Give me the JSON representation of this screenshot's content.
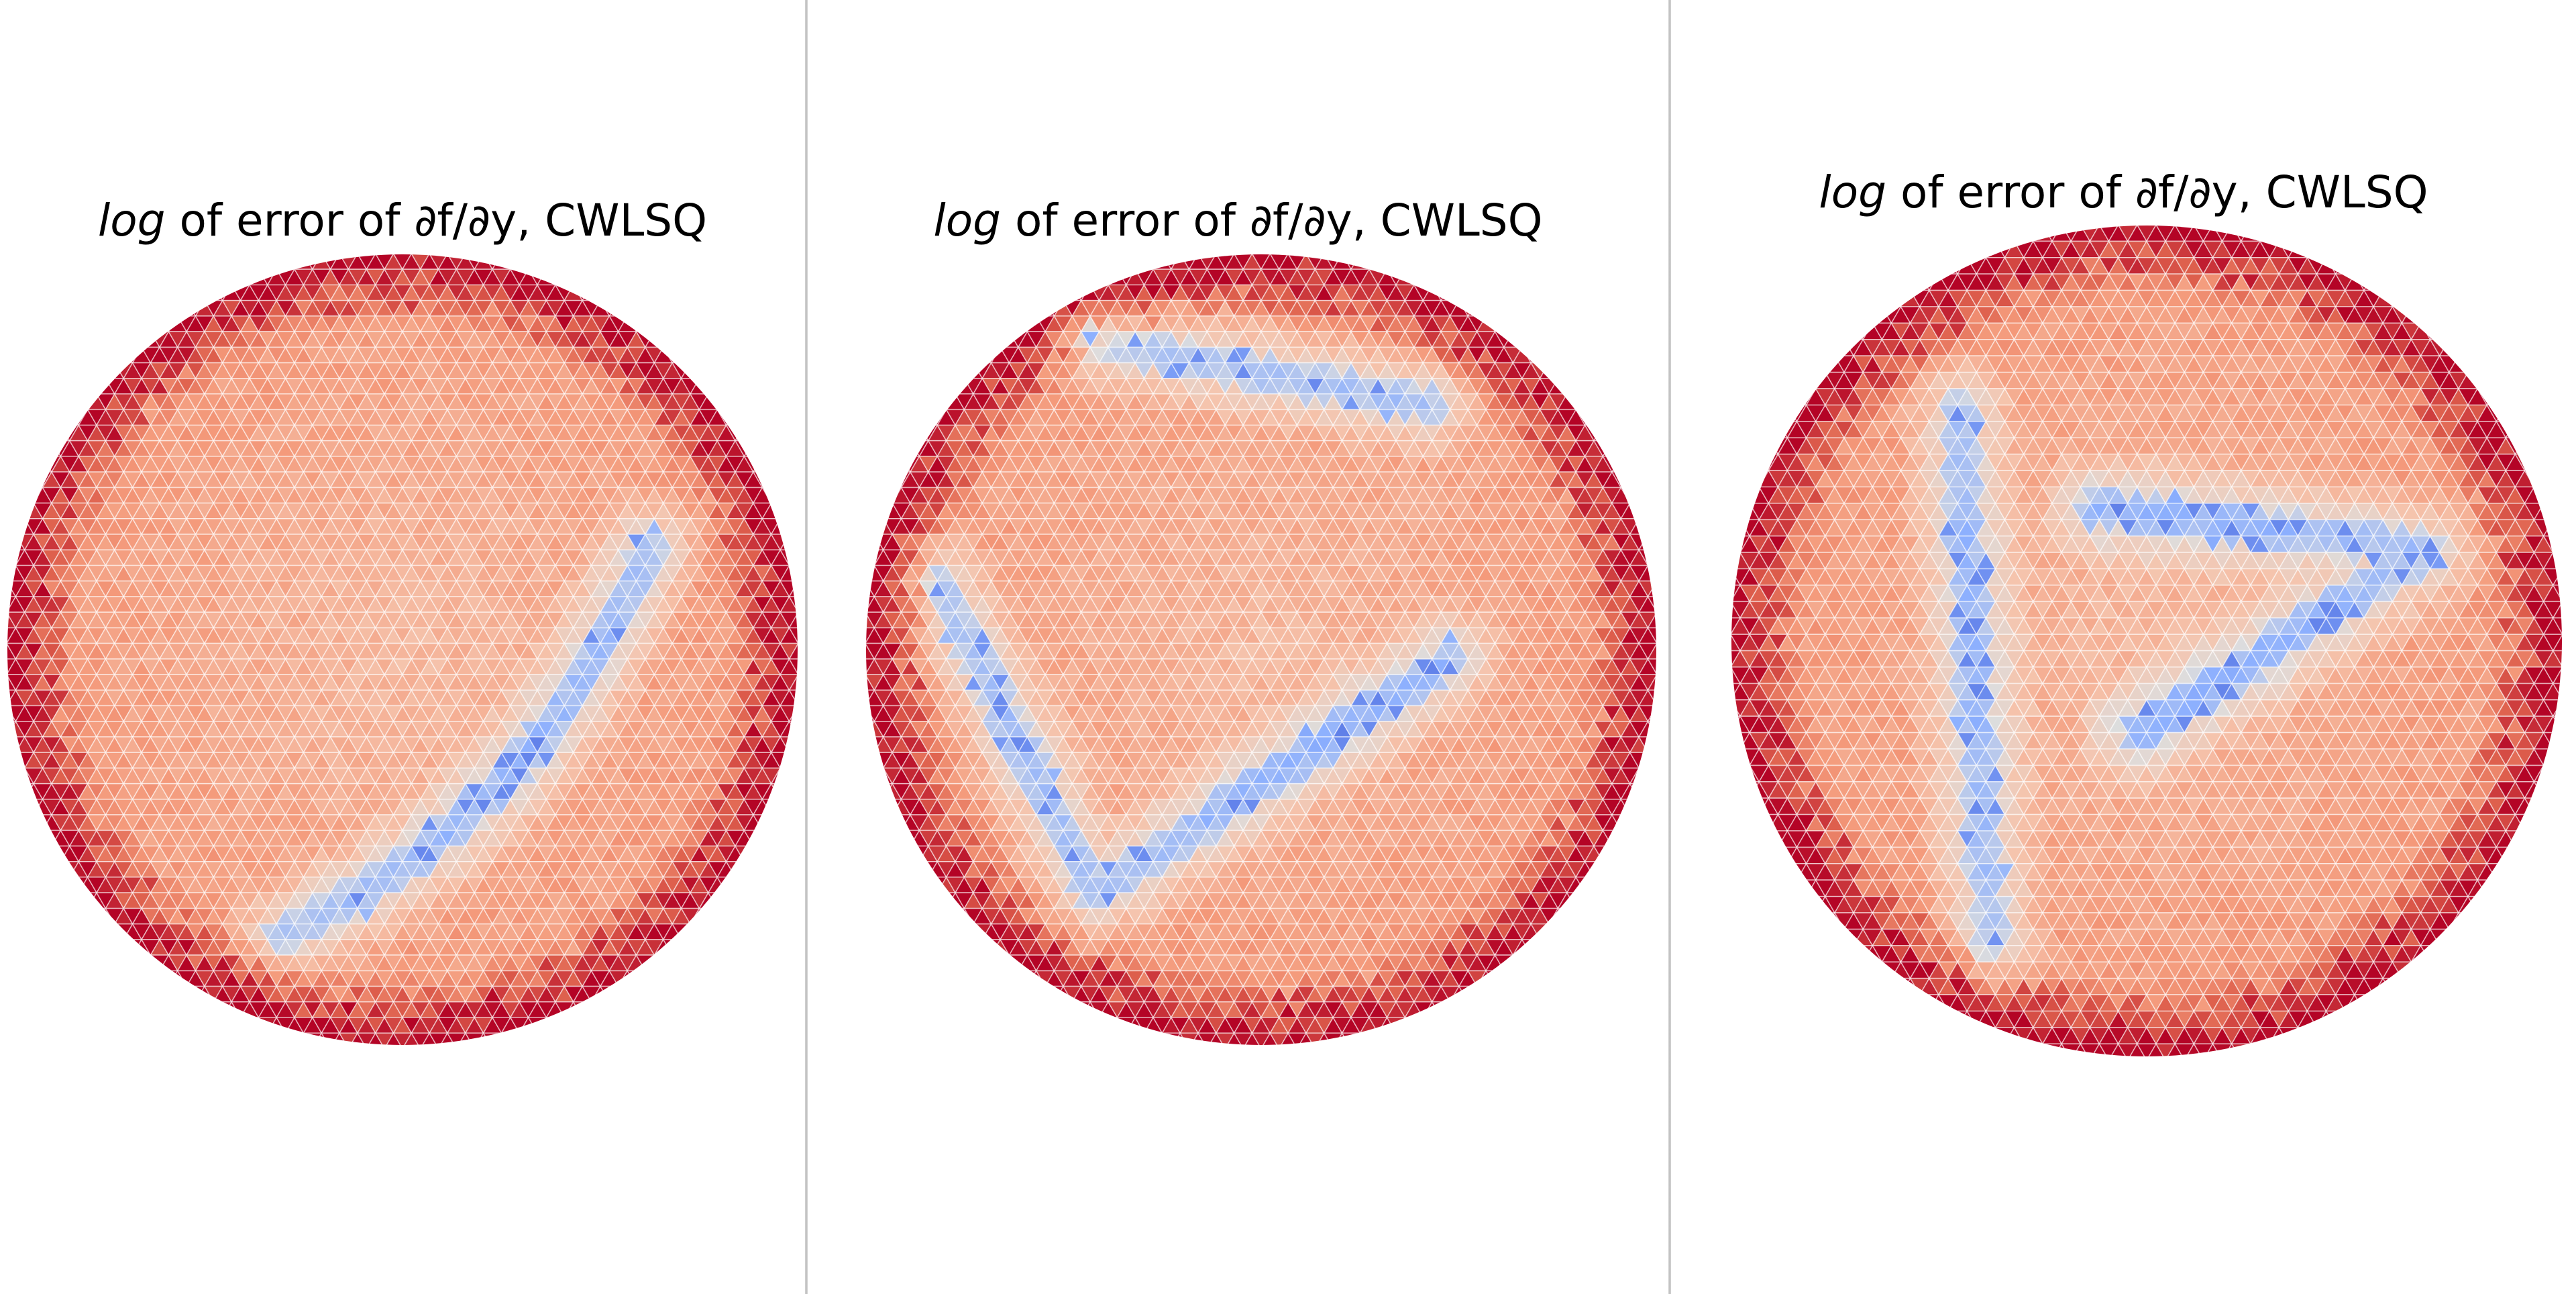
{
  "colors": {
    "colormap": "coolwarm",
    "mesh_edge": "#ffffff"
  },
  "chart_data": [
    {
      "type": "heatmap",
      "subtype": "triangular mesh (tripcolor) on a disk",
      "title_italic": "log",
      "title_rest": " of error of ∂f/∂y, CWLSQ",
      "axes": "off",
      "grid": false,
      "legend": "none",
      "colormap": "coolwarm",
      "pattern": {
        "low_error_bands": [
          {
            "shape": "arc",
            "from": [
              0.62,
              0.26
            ],
            "to": [
              -0.3,
              -0.72
            ],
            "curvature": 0.55
          }
        ],
        "boundary_ring": "high"
      }
    },
    {
      "type": "heatmap",
      "subtype": "triangular mesh (tripcolor) on a disk",
      "title_italic": "log",
      "title_rest": " of error of ∂f/∂y, CWLSQ",
      "axes": "off",
      "grid": false,
      "legend": "none",
      "colormap": "coolwarm",
      "pattern": {
        "low_error_bands": [
          {
            "shape": "line",
            "from": [
              -0.82,
              0.18
            ],
            "to": [
              -0.42,
              -0.62
            ]
          },
          {
            "shape": "line",
            "from": [
              -0.42,
              -0.62
            ],
            "to": [
              0.48,
              -0.02
            ]
          },
          {
            "shape": "line",
            "from": [
              -0.42,
              0.78
            ],
            "to": [
              0.42,
              0.62
            ]
          }
        ],
        "boundary_ring": "high"
      }
    },
    {
      "type": "heatmap",
      "subtype": "triangular mesh (tripcolor) on a disk",
      "title_italic": "log",
      "title_rest": " of error of ∂f/∂y, CWLSQ",
      "axes": "off",
      "grid": false,
      "legend": "none",
      "colormap": "coolwarm",
      "pattern": {
        "low_error_bands": [
          {
            "shape": "line",
            "from": [
              -0.45,
              0.55
            ],
            "to": [
              -0.38,
              -0.72
            ]
          },
          {
            "shape": "line",
            "from": [
              -0.12,
              0.32
            ],
            "to": [
              0.68,
              0.22
            ]
          },
          {
            "shape": "line",
            "from": [
              -0.02,
              -0.22
            ],
            "to": [
              0.62,
              0.18
            ]
          }
        ],
        "boundary_ring": "high"
      }
    }
  ]
}
